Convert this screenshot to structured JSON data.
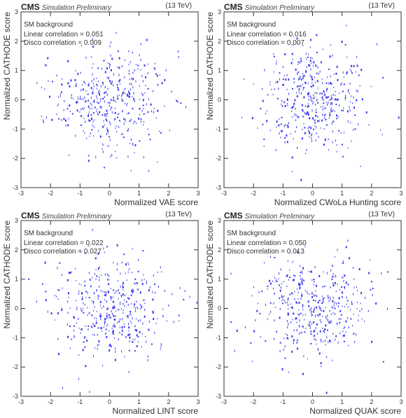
{
  "header": {
    "experiment": "CMS",
    "status": "Simulation Preliminary",
    "energy": "(13 TeV)"
  },
  "panels": [
    {
      "background_label": "SM background",
      "linear_correlation": "Linear correlation = 0.051",
      "disco_correlation": "Disco correlation = 0.009"
    },
    {
      "background_label": "SM background",
      "linear_correlation": "Linear correlation = 0.016",
      "disco_correlation": "Disco correlation = 0.007"
    },
    {
      "background_label": "SM background",
      "linear_correlation": "Linear correlation = 0.022",
      "disco_correlation": "Disco correlation = 0.027"
    },
    {
      "background_label": "SM background",
      "linear_correlation": "Linear correlation = 0.050",
      "disco_correlation": "Disco correlation = 0.013"
    }
  ],
  "chart_data": [
    {
      "type": "scatter",
      "xlabel": "Normalized VAE score",
      "ylabel": "Normalized CATHODE score",
      "xlim": [
        -3,
        3
      ],
      "ylim": [
        -3,
        3
      ],
      "xticks": [
        "-3",
        "-2",
        "-1",
        "0",
        "1",
        "2",
        "3"
      ],
      "yticks": [
        "-3",
        "-2",
        "-1",
        "0",
        "1",
        "2",
        "3"
      ],
      "seed": 11,
      "n_points": 420,
      "x_sigma": 1.0,
      "y_sigma": 0.85,
      "point_color": "#3a3af0"
    },
    {
      "type": "scatter",
      "xlabel": "Normalized CWoLa Hunting score",
      "ylabel": "Normalized CATHODE score",
      "xlim": [
        -3,
        3
      ],
      "ylim": [
        -3,
        3
      ],
      "xticks": [
        "-3",
        "-2",
        "-1",
        "0",
        "1",
        "2",
        "3"
      ],
      "yticks": [
        "-3",
        "-2",
        "-1",
        "0",
        "1",
        "2",
        "3"
      ],
      "seed": 29,
      "n_points": 420,
      "x_sigma": 0.9,
      "y_sigma": 0.9,
      "point_color": "#3a3af0"
    },
    {
      "type": "scatter",
      "xlabel": "Normalized LINT score",
      "ylabel": "Normalized CATHODE score",
      "xlim": [
        -3,
        3
      ],
      "ylim": [
        -3,
        3
      ],
      "xticks": [
        "-3",
        "-2",
        "-1",
        "0",
        "1",
        "2",
        "3"
      ],
      "yticks": [
        "-3",
        "-2",
        "-1",
        "0",
        "1",
        "2",
        "3"
      ],
      "seed": 47,
      "n_points": 420,
      "x_sigma": 1.0,
      "y_sigma": 0.85,
      "point_color": "#3a3af0"
    },
    {
      "type": "scatter",
      "xlabel": "Normalized QUAK score",
      "ylabel": "Normalized CATHODE score",
      "xlim": [
        -3,
        3
      ],
      "ylim": [
        -3,
        3
      ],
      "xticks": [
        "-3",
        "-2",
        "-1",
        "0",
        "1",
        "2",
        "3"
      ],
      "yticks": [
        "-3",
        "-2",
        "-1",
        "0",
        "1",
        "2",
        "3"
      ],
      "seed": 83,
      "n_points": 420,
      "x_sigma": 1.0,
      "y_sigma": 0.85,
      "point_color": "#3a3af0"
    }
  ]
}
